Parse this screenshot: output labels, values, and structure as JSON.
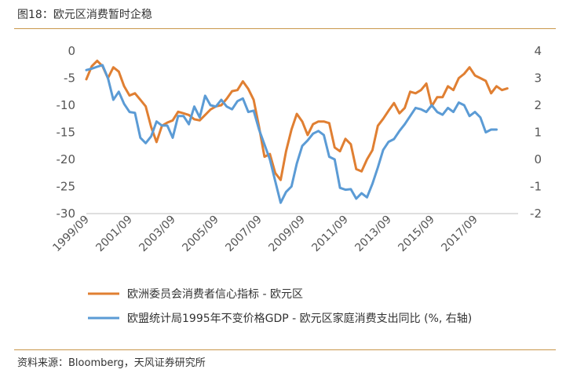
{
  "figure": {
    "title": "图18：欧元区消费暂时企稳",
    "source": "资料来源：Bloomberg，天风证券研究所"
  },
  "colors": {
    "orange": "#e07f32",
    "blue": "#5b9bd5",
    "axis": "#bfbfbf",
    "rule": "#c9974a"
  },
  "chart_data": {
    "type": "line",
    "title": "图18：欧元区消费暂时企稳",
    "x_labels": [
      "1999/09",
      "2001/09",
      "2003/09",
      "2005/09",
      "2007/09",
      "2009/09",
      "2011/09",
      "2013/09",
      "2015/09",
      "2017/09"
    ],
    "x_range": [
      1999.5,
      2019.5
    ],
    "y_left": {
      "range": [
        -30,
        0
      ],
      "ticks": [
        0,
        -5,
        -10,
        -15,
        -20,
        -25,
        -30
      ]
    },
    "y_right": {
      "range": [
        -2,
        4
      ],
      "ticks": [
        4,
        3,
        2,
        1,
        0,
        -1,
        -2
      ]
    },
    "grid": false,
    "legend_position": "bottom",
    "series": [
      {
        "name": "欧洲委员会消费者信心指标 - 欧元区",
        "axis": "left",
        "color": "#e07f32",
        "x": [
          1999.5,
          1999.75,
          2000.0,
          2000.25,
          2000.5,
          2000.75,
          2001.0,
          2001.25,
          2001.5,
          2001.75,
          2002.0,
          2002.25,
          2002.5,
          2002.75,
          2003.0,
          2003.25,
          2003.5,
          2003.75,
          2004.0,
          2004.25,
          2004.5,
          2004.75,
          2005.0,
          2005.25,
          2005.5,
          2005.75,
          2006.0,
          2006.25,
          2006.5,
          2006.75,
          2007.0,
          2007.25,
          2007.5,
          2007.75,
          2008.0,
          2008.25,
          2008.5,
          2008.75,
          2009.0,
          2009.25,
          2009.5,
          2009.75,
          2010.0,
          2010.25,
          2010.5,
          2010.75,
          2011.0,
          2011.25,
          2011.5,
          2011.75,
          2012.0,
          2012.25,
          2012.5,
          2012.75,
          2013.0,
          2013.25,
          2013.5,
          2013.75,
          2014.0,
          2014.25,
          2014.5,
          2014.75,
          2015.0,
          2015.25,
          2015.5,
          2015.75,
          2016.0,
          2016.25,
          2016.5,
          2016.75,
          2017.0,
          2017.25,
          2017.5,
          2017.75,
          2018.0,
          2018.25,
          2018.5,
          2018.75,
          2019.0
        ],
        "values": [
          -5.2,
          -2.8,
          -1.8,
          -2.8,
          -5.0,
          -3.0,
          -3.8,
          -6.5,
          -8.2,
          -7.8,
          -9.0,
          -10.2,
          -14.0,
          -16.8,
          -13.8,
          -13.2,
          -12.8,
          -11.2,
          -11.5,
          -11.8,
          -12.6,
          -12.8,
          -11.8,
          -10.8,
          -10.2,
          -10.0,
          -8.8,
          -7.4,
          -7.2,
          -5.6,
          -7.0,
          -9.0,
          -14.0,
          -19.5,
          -19.0,
          -22.5,
          -23.8,
          -18.5,
          -14.5,
          -11.6,
          -13.0,
          -15.5,
          -13.5,
          -13.0,
          -13.0,
          -13.3,
          -17.8,
          -18.5,
          -16.2,
          -17.2,
          -21.8,
          -22.2,
          -20.0,
          -18.3,
          -13.8,
          -12.5,
          -11.0,
          -9.6,
          -11.5,
          -10.5,
          -7.5,
          -7.8,
          -7.2,
          -6.0,
          -10.2,
          -8.5,
          -8.5,
          -6.5,
          -7.2,
          -5.0,
          -4.2,
          -3.0,
          -4.5,
          -5.0,
          -5.5,
          -7.8,
          -6.5,
          -7.2,
          -6.9
        ]
      },
      {
        "name": "欧盟统计局1995年不变价格GDP - 欧元区家庭消费支出同比 (%, 右轴)",
        "axis": "right",
        "color": "#5b9bd5",
        "x": [
          1999.5,
          1999.75,
          2000.0,
          2000.25,
          2000.5,
          2000.75,
          2001.0,
          2001.25,
          2001.5,
          2001.75,
          2002.0,
          2002.25,
          2002.5,
          2002.75,
          2003.0,
          2003.25,
          2003.5,
          2003.75,
          2004.0,
          2004.25,
          2004.5,
          2004.75,
          2005.0,
          2005.25,
          2005.5,
          2005.75,
          2006.0,
          2006.25,
          2006.5,
          2006.75,
          2007.0,
          2007.25,
          2007.5,
          2007.75,
          2008.0,
          2008.25,
          2008.5,
          2008.75,
          2009.0,
          2009.25,
          2009.5,
          2009.75,
          2010.0,
          2010.25,
          2010.5,
          2010.75,
          2011.0,
          2011.25,
          2011.5,
          2011.75,
          2012.0,
          2012.25,
          2012.5,
          2012.75,
          2013.0,
          2013.25,
          2013.5,
          2013.75,
          2014.0,
          2014.25,
          2014.5,
          2014.75,
          2015.0,
          2015.25,
          2015.5,
          2015.75,
          2016.0,
          2016.25,
          2016.5,
          2016.75,
          2017.0,
          2017.25,
          2017.5,
          2017.75,
          2018.0,
          2018.25,
          2018.5
        ],
        "values": [
          3.3,
          3.35,
          3.42,
          3.48,
          3.0,
          2.2,
          2.5,
          2.05,
          1.75,
          1.72,
          0.8,
          0.6,
          0.85,
          1.4,
          1.25,
          1.25,
          0.8,
          1.6,
          1.6,
          1.3,
          1.95,
          1.55,
          2.35,
          2.0,
          1.95,
          2.2,
          1.95,
          1.85,
          2.15,
          2.25,
          1.75,
          1.8,
          1.1,
          0.55,
          0.0,
          -0.8,
          -1.6,
          -1.2,
          -1.0,
          -0.15,
          0.5,
          0.7,
          0.95,
          1.05,
          0.9,
          0.1,
          0.0,
          -1.05,
          -1.12,
          -1.1,
          -1.45,
          -1.25,
          -1.4,
          -0.9,
          -0.3,
          0.35,
          0.65,
          0.75,
          1.05,
          1.3,
          1.6,
          1.9,
          1.85,
          1.75,
          2.0,
          1.75,
          1.65,
          1.9,
          1.75,
          2.1,
          2.0,
          1.6,
          1.75,
          1.55,
          1.0,
          1.1,
          1.1
        ]
      }
    ]
  }
}
